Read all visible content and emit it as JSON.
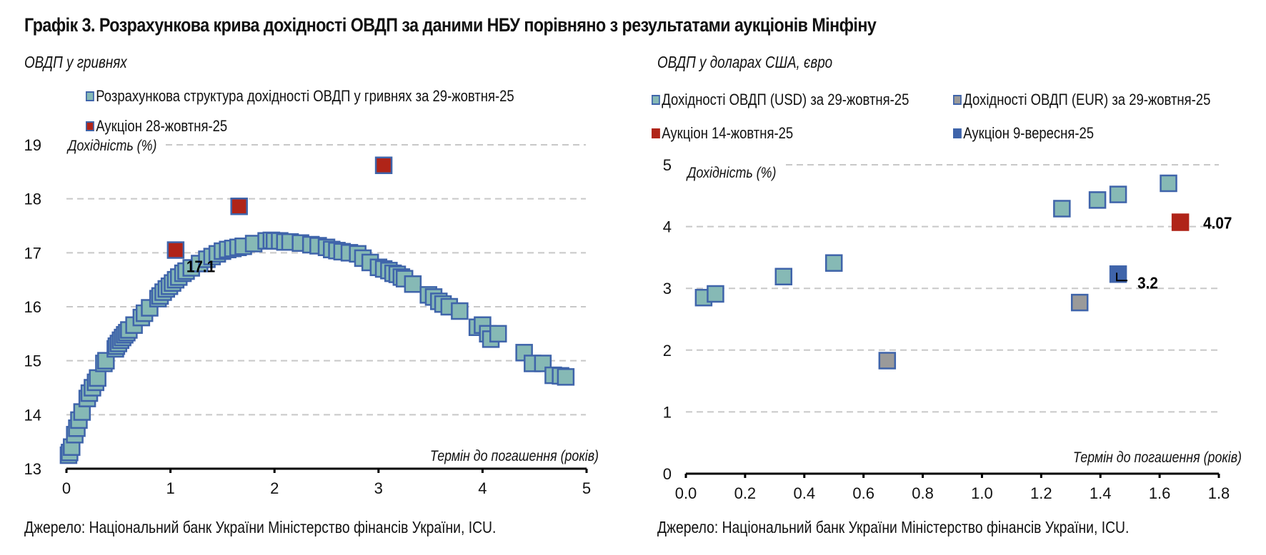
{
  "title": "Графік 3. Розрахункова крива дохідності ОВДП за даними НБУ порівняно з результатами аукціонів Мінфіну",
  "colors": {
    "usd_fill": "#86b9b5",
    "marker_edge": "#3f64aa",
    "auction_red": "#b02418",
    "eur_gray": "#9a9a9a",
    "auction_blue": "#3f64aa",
    "grid": "#c8c8c8"
  },
  "chart_data": [
    {
      "type": "scatter",
      "subtitle": "ОВДП у гривнях",
      "ylabel": "Дохідність (%)",
      "xlabel": "Термін до погашення (років)",
      "xlim": [
        0,
        5
      ],
      "ylim": [
        13,
        19
      ],
      "xticks": [
        "0",
        "1",
        "2",
        "3",
        "4",
        "5"
      ],
      "yticks": [
        "13",
        "14",
        "15",
        "16",
        "17",
        "18",
        "19"
      ],
      "grid": true,
      "legend": [
        {
          "label": "Розрахункова структура дохідності ОВДП у гривнях за 29-жовтня-25",
          "swatch": "usd_fill"
        },
        {
          "label": "Аукціон 28-жовтня-25",
          "swatch": "auction_red"
        }
      ],
      "series": [
        {
          "name": "Розрахункова структура дохідності ОВДП у гривнях за 29-жовтня-25",
          "color": "usd_fill",
          "points": [
            [
              0.02,
              13.25
            ],
            [
              0.03,
              13.3
            ],
            [
              0.05,
              13.4
            ],
            [
              0.08,
              13.63
            ],
            [
              0.1,
              13.75
            ],
            [
              0.12,
              13.9
            ],
            [
              0.15,
              14.05
            ],
            [
              0.2,
              14.3
            ],
            [
              0.22,
              14.4
            ],
            [
              0.25,
              14.5
            ],
            [
              0.28,
              14.6
            ],
            [
              0.3,
              14.68
            ],
            [
              0.36,
              14.95
            ],
            [
              0.38,
              15.0
            ],
            [
              0.47,
              15.22
            ],
            [
              0.48,
              15.27
            ],
            [
              0.5,
              15.32
            ],
            [
              0.52,
              15.38
            ],
            [
              0.54,
              15.43
            ],
            [
              0.56,
              15.48
            ],
            [
              0.58,
              15.52
            ],
            [
              0.6,
              15.57
            ],
            [
              0.65,
              15.66
            ],
            [
              0.72,
              15.8
            ],
            [
              0.75,
              15.88
            ],
            [
              0.8,
              15.98
            ],
            [
              0.88,
              16.15
            ],
            [
              0.9,
              16.2
            ],
            [
              0.93,
              16.27
            ],
            [
              0.96,
              16.33
            ],
            [
              0.99,
              16.38
            ],
            [
              1.02,
              16.44
            ],
            [
              1.05,
              16.5
            ],
            [
              1.08,
              16.55
            ],
            [
              1.12,
              16.62
            ],
            [
              1.15,
              16.66
            ],
            [
              1.2,
              16.72
            ],
            [
              1.28,
              16.8
            ],
            [
              1.35,
              16.88
            ],
            [
              1.4,
              16.93
            ],
            [
              1.45,
              16.98
            ],
            [
              1.5,
              17.03
            ],
            [
              1.55,
              17.06
            ],
            [
              1.6,
              17.08
            ],
            [
              1.65,
              17.1
            ],
            [
              1.7,
              17.12
            ],
            [
              1.8,
              17.17
            ],
            [
              1.92,
              17.22
            ],
            [
              1.97,
              17.23
            ],
            [
              2.0,
              17.22
            ],
            [
              2.05,
              17.22
            ],
            [
              2.1,
              17.2
            ],
            [
              2.15,
              17.2
            ],
            [
              2.25,
              17.18
            ],
            [
              2.35,
              17.15
            ],
            [
              2.42,
              17.13
            ],
            [
              2.5,
              17.1
            ],
            [
              2.55,
              17.06
            ],
            [
              2.6,
              17.04
            ],
            [
              2.65,
              17.02
            ],
            [
              2.72,
              17.0
            ],
            [
              2.8,
              16.98
            ],
            [
              2.85,
              16.9
            ],
            [
              2.92,
              16.82
            ],
            [
              3.0,
              16.73
            ],
            [
              3.05,
              16.7
            ],
            [
              3.1,
              16.67
            ],
            [
              3.14,
              16.62
            ],
            [
              3.18,
              16.6
            ],
            [
              3.22,
              16.55
            ],
            [
              3.25,
              16.52
            ],
            [
              3.33,
              16.42
            ],
            [
              3.48,
              16.22
            ],
            [
              3.53,
              16.18
            ],
            [
              3.58,
              16.1
            ],
            [
              3.62,
              16.05
            ],
            [
              3.68,
              16.0
            ],
            [
              3.78,
              15.92
            ],
            [
              3.95,
              15.62
            ],
            [
              4.0,
              15.66
            ],
            [
              4.05,
              15.5
            ],
            [
              4.08,
              15.4
            ],
            [
              4.15,
              15.5
            ],
            [
              4.4,
              15.15
            ],
            [
              4.48,
              14.95
            ],
            [
              4.58,
              14.95
            ],
            [
              4.68,
              14.73
            ],
            [
              4.75,
              14.72
            ],
            [
              4.8,
              14.7
            ]
          ]
        },
        {
          "name": "Аукціон 28-жовтня-25",
          "color": "auction_red",
          "points": [
            [
              1.05,
              17.05
            ],
            [
              1.66,
              17.86
            ],
            [
              3.05,
              18.62
            ]
          ]
        }
      ],
      "annotations": [
        {
          "text": "17.1",
          "x": 1.05,
          "y": 17.05
        }
      ]
    },
    {
      "type": "scatter",
      "subtitle": "ОВДП у доларах США, євро",
      "ylabel": "Дохідність (%)",
      "xlabel": "Термін до погашення (років)",
      "xlim": [
        0,
        1.8
      ],
      "ylim": [
        0,
        5
      ],
      "xticks": [
        "0.0",
        "0.2",
        "0.4",
        "0.6",
        "0.8",
        "1.0",
        "1.2",
        "1.4",
        "1.6",
        "1.8"
      ],
      "yticks": [
        "0",
        "1",
        "2",
        "3",
        "4",
        "5"
      ],
      "grid": true,
      "legend": [
        {
          "label": "Дохідності ОВДП (USD) за 29-жовтня-25",
          "swatch": "usd_fill"
        },
        {
          "label": "Дохідності ОВДП (EUR) за 29-жовтня-25",
          "swatch": "eur_gray"
        },
        {
          "label": "Аукціон 14-жовтня-25",
          "swatch": "auction_red"
        },
        {
          "label": "Аукціон 9-вересня-25",
          "swatch": "auction_blue"
        }
      ],
      "series": [
        {
          "name": "Дохідності ОВДП (USD) за 29-жовтня-25",
          "color": "usd_fill",
          "points": [
            [
              0.06,
              2.85
            ],
            [
              0.1,
              2.91
            ],
            [
              0.33,
              3.19
            ],
            [
              0.5,
              3.41
            ],
            [
              1.27,
              4.29
            ],
            [
              1.39,
              4.43
            ],
            [
              1.46,
              4.52
            ],
            [
              1.63,
              4.7
            ]
          ]
        },
        {
          "name": "Дохідності ОВДП (EUR) за 29-жовтня-25",
          "color": "eur_gray",
          "points": [
            [
              0.68,
              1.83
            ],
            [
              1.33,
              2.77
            ]
          ]
        },
        {
          "name": "Аукціон 14-жовтня-25",
          "color": "auction_red",
          "points": [
            [
              1.67,
              4.07
            ]
          ]
        },
        {
          "name": "Аукціон 9-вересня-25",
          "color": "auction_blue",
          "points": [
            [
              1.46,
              3.23
            ]
          ]
        }
      ],
      "annotations": [
        {
          "text": "4.07",
          "x": 1.67,
          "y": 4.07
        },
        {
          "text": "3.2",
          "x": 1.46,
          "y": 3.23
        }
      ]
    }
  ],
  "source_left": "Джерело: Національний банк України Міністерство фінансів України, ICU.",
  "source_right": "Джерело: Національний банк України Міністерство фінансів України, ICU."
}
